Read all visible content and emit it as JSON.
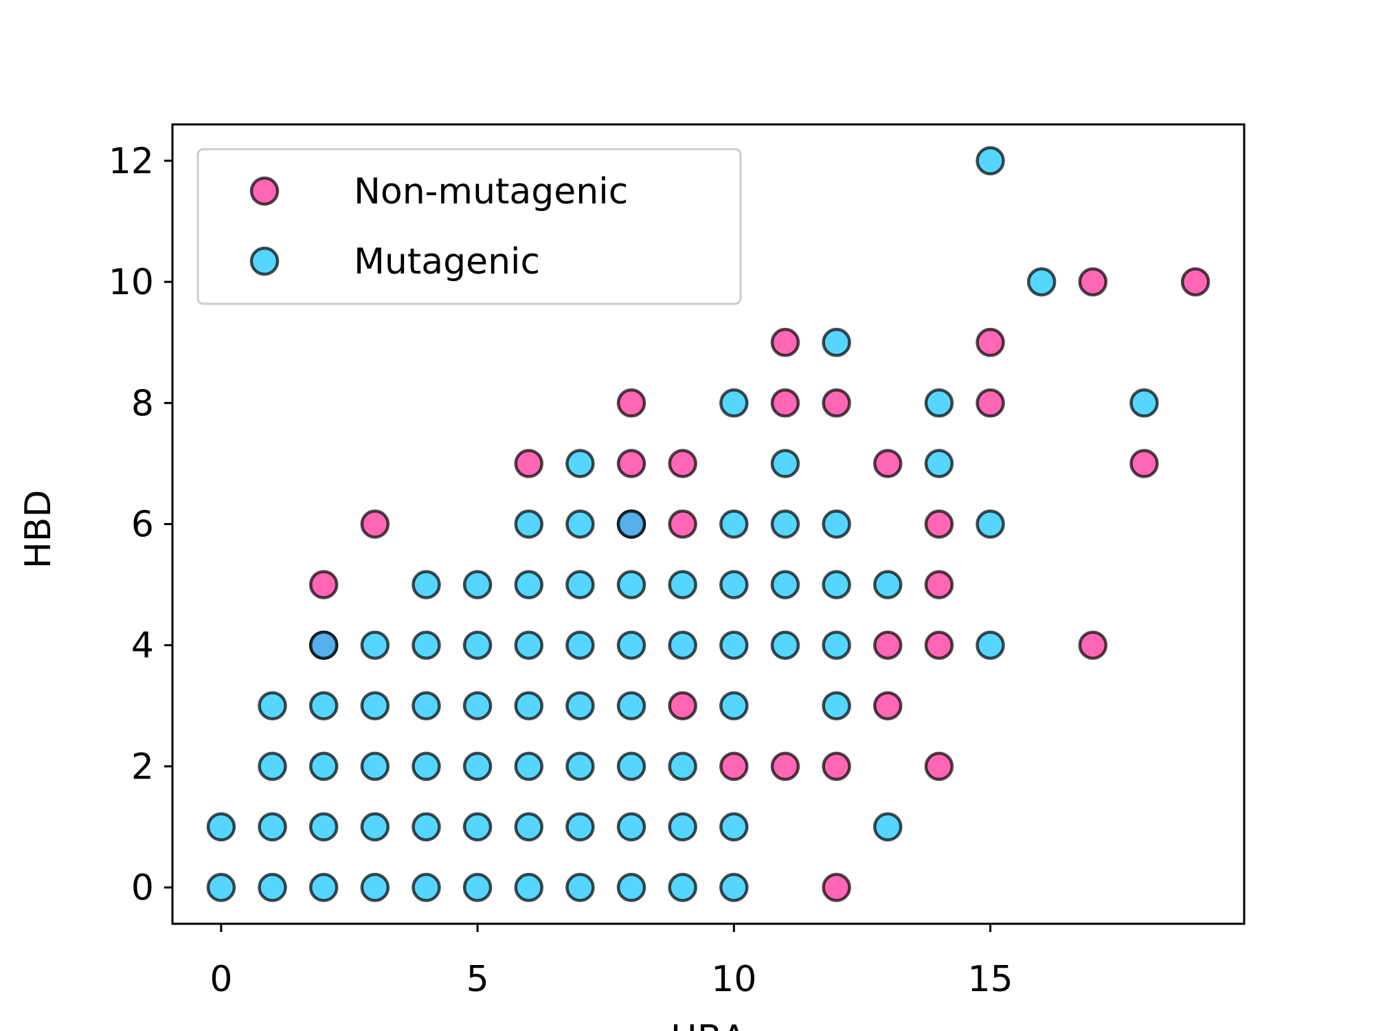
{
  "chart_data": {
    "type": "scatter",
    "title": "",
    "xlabel": "HBA",
    "ylabel": "HBD",
    "xlim": [
      -0.95,
      19.95
    ],
    "ylim": [
      -0.6,
      12.6
    ],
    "xticks": [
      0,
      5,
      10,
      15
    ],
    "yticks": [
      0,
      2,
      4,
      6,
      8,
      10,
      12
    ],
    "grid": false,
    "legend": {
      "location": "upper-left"
    },
    "series": [
      {
        "name": "Non-mutagenic",
        "color": "#ff3399",
        "edge_color": "#000000",
        "points": [
          [
            2,
            4
          ],
          [
            2,
            5
          ],
          [
            3,
            6
          ],
          [
            6,
            7
          ],
          [
            8,
            7
          ],
          [
            8,
            8
          ],
          [
            8,
            6
          ],
          [
            9,
            7
          ],
          [
            9,
            6
          ],
          [
            9,
            3
          ],
          [
            10,
            2
          ],
          [
            11,
            9
          ],
          [
            11,
            8
          ],
          [
            11,
            2
          ],
          [
            12,
            8
          ],
          [
            12,
            2
          ],
          [
            12,
            0
          ],
          [
            13,
            7
          ],
          [
            13,
            4
          ],
          [
            13,
            3
          ],
          [
            14,
            6
          ],
          [
            14,
            5
          ],
          [
            14,
            4
          ],
          [
            14,
            2
          ],
          [
            15,
            9
          ],
          [
            15,
            8
          ],
          [
            17,
            10
          ],
          [
            17,
            4
          ],
          [
            18,
            7
          ],
          [
            19,
            10
          ]
        ]
      },
      {
        "name": "Mutagenic",
        "color": "#1ec8ff",
        "edge_color": "#000000",
        "points": [
          [
            0,
            0
          ],
          [
            0,
            1
          ],
          [
            1,
            0
          ],
          [
            1,
            1
          ],
          [
            1,
            2
          ],
          [
            1,
            3
          ],
          [
            2,
            0
          ],
          [
            2,
            1
          ],
          [
            2,
            2
          ],
          [
            2,
            3
          ],
          [
            2,
            4
          ],
          [
            3,
            0
          ],
          [
            3,
            1
          ],
          [
            3,
            2
          ],
          [
            3,
            3
          ],
          [
            3,
            4
          ],
          [
            4,
            0
          ],
          [
            4,
            1
          ],
          [
            4,
            2
          ],
          [
            4,
            3
          ],
          [
            4,
            4
          ],
          [
            4,
            5
          ],
          [
            5,
            0
          ],
          [
            5,
            1
          ],
          [
            5,
            2
          ],
          [
            5,
            3
          ],
          [
            5,
            4
          ],
          [
            5,
            5
          ],
          [
            6,
            0
          ],
          [
            6,
            1
          ],
          [
            6,
            2
          ],
          [
            6,
            3
          ],
          [
            6,
            4
          ],
          [
            6,
            5
          ],
          [
            6,
            6
          ],
          [
            7,
            0
          ],
          [
            7,
            1
          ],
          [
            7,
            2
          ],
          [
            7,
            3
          ],
          [
            7,
            4
          ],
          [
            7,
            5
          ],
          [
            7,
            6
          ],
          [
            7,
            7
          ],
          [
            8,
            0
          ],
          [
            8,
            1
          ],
          [
            8,
            2
          ],
          [
            8,
            3
          ],
          [
            8,
            4
          ],
          [
            8,
            5
          ],
          [
            8,
            6
          ],
          [
            9,
            0
          ],
          [
            9,
            1
          ],
          [
            9,
            2
          ],
          [
            9,
            4
          ],
          [
            9,
            5
          ],
          [
            10,
            0
          ],
          [
            10,
            1
          ],
          [
            10,
            3
          ],
          [
            10,
            4
          ],
          [
            10,
            5
          ],
          [
            10,
            6
          ],
          [
            10,
            8
          ],
          [
            11,
            4
          ],
          [
            11,
            5
          ],
          [
            11,
            6
          ],
          [
            11,
            7
          ],
          [
            12,
            3
          ],
          [
            12,
            4
          ],
          [
            12,
            5
          ],
          [
            12,
            6
          ],
          [
            12,
            9
          ],
          [
            13,
            1
          ],
          [
            13,
            5
          ],
          [
            14,
            7
          ],
          [
            14,
            8
          ],
          [
            15,
            4
          ],
          [
            15,
            6
          ],
          [
            15,
            12
          ],
          [
            16,
            10
          ],
          [
            18,
            8
          ]
        ]
      }
    ]
  }
}
